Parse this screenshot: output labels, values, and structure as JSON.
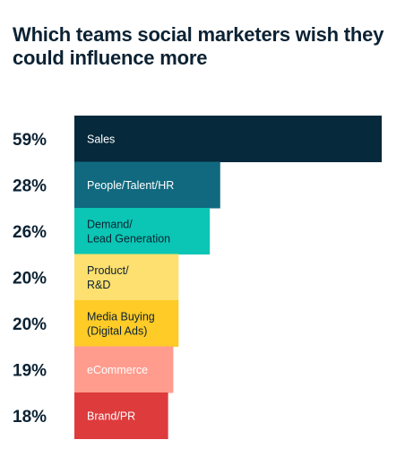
{
  "title": "Which teams social marketers wish they could influence more",
  "chart_data": {
    "type": "bar",
    "orientation": "horizontal",
    "title": "Which teams social marketers wish they could influence more",
    "categories": [
      "Sales",
      "People/Talent/HR",
      "Demand/\nLead Generation",
      "Product/\nR&D",
      "Media Buying\n(Digital Ads)",
      "eCommerce",
      "Brand/PR"
    ],
    "values": [
      59,
      28,
      26,
      20,
      20,
      19,
      18
    ],
    "value_labels": [
      "59%",
      "28%",
      "26%",
      "20%",
      "20%",
      "19%",
      "18%"
    ],
    "unit": "%",
    "colors": [
      "#06293b",
      "#11697f",
      "#0bc6b4",
      "#fde06f",
      "#fecb27",
      "#ff9c8e",
      "#de3b3d"
    ],
    "label_colors": [
      "#ffffff",
      "#ffffff",
      "#0c2233",
      "#0c2233",
      "#0c2233",
      "#ffffff",
      "#ffffff"
    ],
    "xlim": [
      0,
      59
    ],
    "grid": false,
    "legend": "none"
  }
}
